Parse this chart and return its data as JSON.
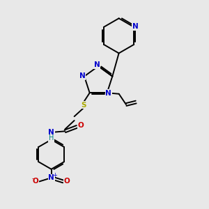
{
  "bg": "#e8e8e8",
  "bond_color": "#000000",
  "N_color": "#0000cc",
  "S_color": "#aaaa00",
  "O_color": "#cc0000",
  "H_color": "#008080",
  "figsize": [
    3.0,
    3.0
  ],
  "dpi": 100,
  "xlim": [
    0,
    10
  ],
  "ylim": [
    0,
    10
  ]
}
